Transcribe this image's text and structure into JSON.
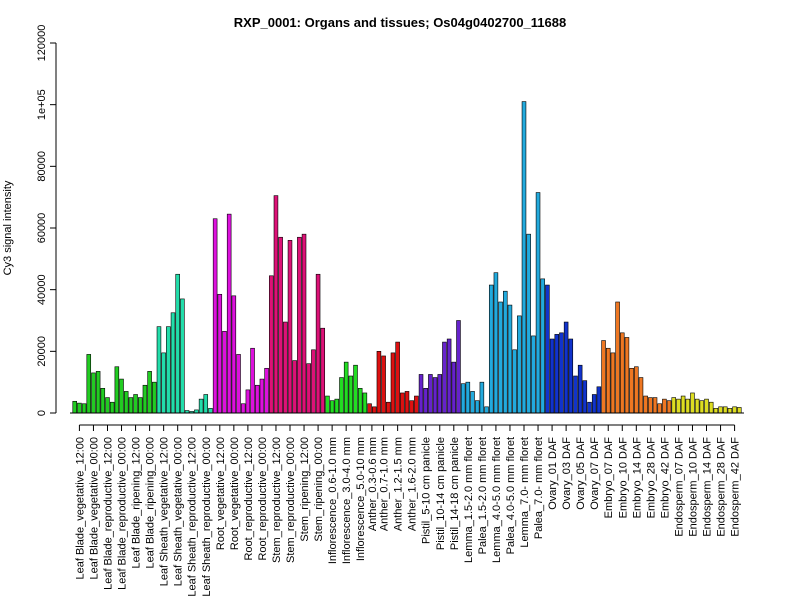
{
  "chart_data": {
    "type": "bar",
    "title": "RXP_0001: Organs and tissues; Os04g0402700_11688",
    "xlabel": "",
    "ylabel": "Cy3 signal intensity",
    "ylim": [
      0,
      120000
    ],
    "yticks": [
      0,
      20000,
      40000,
      60000,
      80000,
      100000,
      120000
    ],
    "ytick_labels": [
      "0",
      "20000",
      "40000",
      "60000",
      "80000",
      "1e+05",
      "120000"
    ],
    "grid": false,
    "legend": "none",
    "groups": [
      {
        "label": "Leaf Blade_vegetative_12:00",
        "color": "#22cc22",
        "values": [
          3800,
          3200,
          3000
        ]
      },
      {
        "label": "Leaf Blade_vegetative_00:00",
        "color": "#22cc22",
        "values": [
          19000,
          13000,
          13500
        ]
      },
      {
        "label": "Leaf Blade_reproductive_12:00",
        "color": "#22cc22",
        "values": [
          8000,
          5000,
          3500
        ]
      },
      {
        "label": "Leaf Blade_reproductive_00:00",
        "color": "#22cc22",
        "values": [
          15000,
          11000,
          7000
        ]
      },
      {
        "label": "Leaf Blade_ripening_12:00",
        "color": "#22cc22",
        "values": [
          5000,
          6000,
          5000
        ]
      },
      {
        "label": "Leaf Blade_ripening_00:00",
        "color": "#22cc22",
        "values": [
          9000,
          13500,
          10000
        ]
      },
      {
        "label": "Leaf Sheath_vegetative_12:00",
        "color": "#22ddaa",
        "values": [
          28000,
          19500,
          28000
        ]
      },
      {
        "label": "Leaf Sheath_vegetative_00:00",
        "color": "#22ddaa",
        "values": [
          32500,
          45000,
          37000
        ]
      },
      {
        "label": "Leaf Sheath_reproductive_12:00",
        "color": "#22ddaa",
        "values": [
          800,
          500,
          1000
        ]
      },
      {
        "label": "Leaf Sheath_reproductive_00:00",
        "color": "#22ddaa",
        "values": [
          4500,
          6000,
          1500
        ]
      },
      {
        "label": "Root_vegetative_12:00",
        "color": "#dd11dd",
        "values": [
          63000,
          38500,
          26500
        ]
      },
      {
        "label": "Root_vegetative_00:00",
        "color": "#dd11dd",
        "values": [
          64500,
          38000,
          19000
        ]
      },
      {
        "label": "Root_reproductive_12:00",
        "color": "#dd11dd",
        "values": [
          3000,
          7500,
          21000
        ]
      },
      {
        "label": "Root_reproductive_00:00",
        "color": "#dd11dd",
        "values": [
          9000,
          11000,
          14500
        ]
      },
      {
        "label": "Stem_reproductive_12:00",
        "color": "#dd1177",
        "values": [
          44500,
          70500,
          57000
        ]
      },
      {
        "label": "Stem_reproductive_00:00",
        "color": "#dd1177",
        "values": [
          29500,
          56000,
          17000
        ]
      },
      {
        "label": "Stem_ripening_12:00",
        "color": "#dd1177",
        "values": [
          57000,
          58000,
          16000
        ]
      },
      {
        "label": "Stem_ripening_00:00",
        "color": "#dd1177",
        "values": [
          20500,
          45000,
          27500
        ]
      },
      {
        "label": "Inflorescence_0.6-1.0 mm",
        "color": "#22dd22",
        "values": [
          5500,
          4000,
          4500
        ]
      },
      {
        "label": "Inflorescence_3.0-4.0 mm",
        "color": "#22dd22",
        "values": [
          11500,
          16500,
          12000
        ]
      },
      {
        "label": "Inflorescence_5.0-10 mm",
        "color": "#22dd22",
        "values": [
          15500,
          8000,
          6500
        ]
      },
      {
        "label": "Anther_0.3-0.6 mm",
        "color": "#dd1111",
        "values": [
          3000,
          2000
        ]
      },
      {
        "label": "Anther_0.7-1.0 mm",
        "color": "#dd1111",
        "values": [
          20000,
          18500,
          3500
        ]
      },
      {
        "label": "Anther_1.2-1.5 mm",
        "color": "#dd1111",
        "values": [
          19500,
          23000,
          6500
        ]
      },
      {
        "label": "Anther_1.6-2.0 mm",
        "color": "#dd1111",
        "values": [
          7000,
          4000,
          5500
        ]
      },
      {
        "label": "Pistil_5-10 cm panicle",
        "color": "#6622cc",
        "values": [
          12500,
          8000,
          12500
        ]
      },
      {
        "label": "Pistil_10-14 cm panicle",
        "color": "#6622cc",
        "values": [
          11500,
          12500,
          23000
        ]
      },
      {
        "label": "Pistil_14-18 cm panicle",
        "color": "#6622cc",
        "values": [
          24000,
          16500,
          30000
        ]
      },
      {
        "label": "Lemma_1.5-2.0 mm floret",
        "color": "#22aadd",
        "values": [
          9500,
          10000,
          7000
        ]
      },
      {
        "label": "Palea_1.5-2.0 mm floret",
        "color": "#22aadd",
        "values": [
          4000,
          10000,
          2000
        ]
      },
      {
        "label": "Lemma_4.0-5.0 mm floret",
        "color": "#22aadd",
        "values": [
          41500,
          45500,
          36000
        ]
      },
      {
        "label": "Palea_4.0-5.0 mm floret",
        "color": "#22aadd",
        "values": [
          39500,
          35000,
          20500
        ]
      },
      {
        "label": "Lemma_7.0- mm floret",
        "color": "#22aadd",
        "values": [
          31500,
          101000,
          58000
        ]
      },
      {
        "label": "Palea_7.0- mm floret",
        "color": "#22aadd",
        "values": [
          25000,
          71500,
          43500
        ]
      },
      {
        "label": "Ovary_01 DAF",
        "color": "#1133cc",
        "values": [
          41500,
          24000,
          25500
        ]
      },
      {
        "label": "Ovary_03 DAF",
        "color": "#1133cc",
        "values": [
          26000,
          29500,
          24000
        ]
      },
      {
        "label": "Ovary_05 DAF",
        "color": "#1133cc",
        "values": [
          12000,
          15500,
          10500
        ]
      },
      {
        "label": "Ovary_07 DAF",
        "color": "#1133cc",
        "values": [
          3500,
          6000,
          8500
        ]
      },
      {
        "label": "Embryo_07 DAF",
        "color": "#ee7722",
        "values": [
          23500,
          21000,
          19500
        ]
      },
      {
        "label": "Embryo_10 DAF",
        "color": "#ee7722",
        "values": [
          36000,
          26000,
          24500
        ]
      },
      {
        "label": "Embryo_14 DAF",
        "color": "#ee7722",
        "values": [
          14500,
          15000,
          11500
        ]
      },
      {
        "label": "Embryo_28 DAF",
        "color": "#ee7722",
        "values": [
          5500,
          5000,
          5000
        ]
      },
      {
        "label": "Embryo_42 DAF",
        "color": "#ee7722",
        "values": [
          3000,
          4500,
          4000
        ]
      },
      {
        "label": "Endosperm_07 DAF",
        "color": "#dddd22",
        "values": [
          5000,
          4500,
          5500
        ]
      },
      {
        "label": "Endosperm_10 DAF",
        "color": "#dddd22",
        "values": [
          4500,
          6500,
          4500
        ]
      },
      {
        "label": "Endosperm_14 DAF",
        "color": "#dddd22",
        "values": [
          4000,
          4500,
          3500
        ]
      },
      {
        "label": "Endosperm_28 DAF",
        "color": "#dddd22",
        "values": [
          1500,
          2000,
          2000
        ]
      },
      {
        "label": "Endosperm_42 DAF",
        "color": "#dddd22",
        "values": [
          1500,
          2000,
          1800
        ]
      }
    ]
  }
}
